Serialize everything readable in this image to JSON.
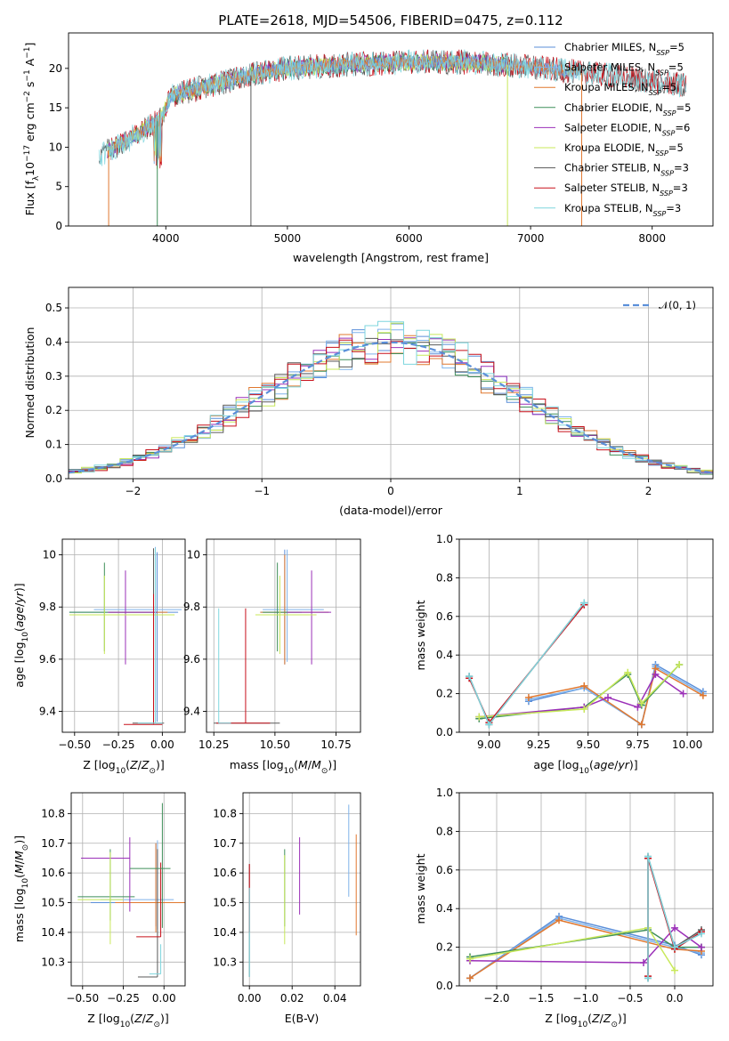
{
  "title": "PLATE=2618, MJD=54506, FIBERID=0475, z=0.112",
  "colors": {
    "Chabrier MILES": "#5b8fd9",
    "Salpeter MILES": "#7fb2ea",
    "Kroupa MILES": "#e0782f",
    "Chabrier ELODIE": "#3f8f5a",
    "Salpeter ELODIE": "#9b30b8",
    "Kroupa ELODIE": "#c8e85a",
    "Chabrier STELIB": "#5a5a5a",
    "Salpeter STELIB": "#c8101a",
    "Kroupa STELIB": "#7ed6de"
  },
  "chart_data": [
    {
      "id": "spectrum",
      "type": "line",
      "title": "PLATE=2618, MJD=54506, FIBERID=0475, z=0.112",
      "xlabel": "wavelength [Angstrom, rest frame]",
      "ylabel": "Flux [f_λ10^-17 erg cm^-2 s^-1 A^-1]",
      "xlim": [
        3200,
        8500
      ],
      "ylim": [
        0,
        24.5
      ],
      "xticks": [
        4000,
        5000,
        6000,
        7000,
        8000
      ],
      "yticks": [
        0,
        5,
        10,
        15,
        20
      ],
      "grid": false,
      "legend": "upper-right",
      "legend_entries": [
        {
          "sed": "Chabrier MILES",
          "ssp": "5"
        },
        {
          "sed": "Salpeter MILES",
          "ssp": "5"
        },
        {
          "sed": "Kroupa MILES",
          "ssp": "5"
        },
        {
          "sed": "Chabrier ELODIE",
          "ssp": "5"
        },
        {
          "sed": "Salpeter ELODIE",
          "ssp": "6"
        },
        {
          "sed": "Kroupa ELODIE",
          "ssp": "5"
        },
        {
          "sed": "Chabrier STELIB",
          "ssp": "3"
        },
        {
          "sed": "Salpeter STELIB",
          "ssp": "3"
        },
        {
          "sed": "Kroupa STELIB",
          "ssp": "3"
        }
      ],
      "continuum_x": [
        3450,
        3700,
        3850,
        3950,
        4050,
        4400,
        4800,
        5000,
        5500,
        6000,
        6500,
        7000,
        7400,
        7800,
        8280
      ],
      "continuum_y": [
        9.0,
        11.0,
        12.5,
        13.5,
        16.5,
        18.0,
        19.5,
        20.0,
        20.5,
        20.8,
        20.8,
        20.2,
        19.5,
        18.8,
        17.8
      ],
      "dropouts_x": [
        3530,
        3930,
        4700,
        6810,
        7420
      ]
    },
    {
      "id": "residuals",
      "type": "step-histogram",
      "xlabel": "(data-model)/error",
      "ylabel": "Normed distribution",
      "xlim": [
        -2.5,
        2.5
      ],
      "ylim": [
        0,
        0.56
      ],
      "xticks": [
        -2,
        -1,
        0,
        1,
        2
      ],
      "yticks": [
        0.0,
        0.1,
        0.2,
        0.3,
        0.4,
        0.5
      ],
      "grid": true,
      "legend": "upper-right",
      "normal_label": "𝒩(0, 1)",
      "bin_width": 0.1
    },
    {
      "id": "age_vs_Z",
      "type": "errorbar",
      "xlabel": "Z [log10(Z/Z⊙)]",
      "ylabel": "age  [log10(age/yr)]",
      "xlim": [
        -0.57,
        0.13
      ],
      "ylim": [
        9.32,
        10.06
      ],
      "xticks": [
        -0.5,
        -0.25,
        0.0
      ],
      "xticklabels": [
        "−0.50",
        "−0.25",
        "0.00"
      ],
      "yticks": [
        9.4,
        9.6,
        9.8,
        10.0
      ],
      "grid": true,
      "points": [
        {
          "sed": "Chabrier MILES",
          "x": -0.03,
          "y": 9.78,
          "xerr": [
            0.5,
            0.12
          ],
          "yerr": [
            0.42,
            0.23
          ]
        },
        {
          "sed": "Salpeter MILES",
          "x": -0.04,
          "y": 9.79,
          "xerr": [
            0.35,
            0.15
          ],
          "yerr": [
            0.43,
            0.24
          ]
        },
        {
          "sed": "Kroupa MILES",
          "x": -0.05,
          "y": 9.78,
          "xerr": [
            0.25,
            0.08
          ],
          "yerr": [
            0.4,
            0.22
          ]
        },
        {
          "sed": "Chabrier ELODIE",
          "x": -0.33,
          "y": 9.78,
          "xerr": [
            0.2,
            0.3
          ],
          "yerr": [
            0.15,
            0.19
          ]
        },
        {
          "sed": "Salpeter ELODIE",
          "x": -0.21,
          "y": 9.78,
          "xerr": [
            0.1,
            0.18
          ],
          "yerr": [
            0.2,
            0.16
          ]
        },
        {
          "sed": "Kroupa ELODIE",
          "x": -0.33,
          "y": 9.77,
          "xerr": [
            0.2,
            0.4
          ],
          "yerr": [
            0.15,
            0.15
          ]
        },
        {
          "sed": "Chabrier STELIB",
          "x": -0.05,
          "y": 9.355,
          "xerr": [
            0.12,
            0.06
          ],
          "yerr": [
            0.0,
            0.67
          ]
        },
        {
          "sed": "Salpeter STELIB",
          "x": -0.05,
          "y": 9.35,
          "xerr": [
            0.17,
            0.05
          ],
          "yerr": [
            0.0,
            0.5
          ]
        },
        {
          "sed": "Kroupa STELIB",
          "x": -0.04,
          "y": 9.355,
          "xerr": [
            0.1,
            0.04
          ],
          "yerr": [
            0.0,
            0.67
          ]
        }
      ]
    },
    {
      "id": "age_vs_mass",
      "type": "errorbar",
      "xlabel": "mass [log10(M/M⊙)]",
      "ylabel": "",
      "xlim": [
        10.22,
        10.85
      ],
      "ylim": [
        9.32,
        10.06
      ],
      "xticks": [
        10.25,
        10.5,
        10.75
      ],
      "xticklabels": [
        "10.25",
        "10.50",
        "10.75"
      ],
      "yticks": [
        9.4,
        9.6,
        9.8,
        10.0
      ],
      "grid": true,
      "points": [
        {
          "sed": "Chabrier MILES",
          "x": 10.54,
          "y": 9.78,
          "xerr": [
            0.1,
            0.18
          ],
          "yerr": [
            0.2,
            0.24
          ]
        },
        {
          "sed": "Salpeter MILES",
          "x": 10.55,
          "y": 9.79,
          "xerr": [
            0.1,
            0.15
          ],
          "yerr": [
            0.2,
            0.23
          ]
        },
        {
          "sed": "Kroupa MILES",
          "x": 10.54,
          "y": 9.78,
          "xerr": [
            0.1,
            0.18
          ],
          "yerr": [
            0.2,
            0.22
          ]
        },
        {
          "sed": "Chabrier ELODIE",
          "x": 10.51,
          "y": 9.78,
          "xerr": [
            0.06,
            0.1
          ],
          "yerr": [
            0.15,
            0.19
          ]
        },
        {
          "sed": "Salpeter ELODIE",
          "x": 10.65,
          "y": 9.78,
          "xerr": [
            0.1,
            0.08
          ],
          "yerr": [
            0.2,
            0.16
          ]
        },
        {
          "sed": "Kroupa ELODIE",
          "x": 10.52,
          "y": 9.77,
          "xerr": [
            0.1,
            0.15
          ],
          "yerr": [
            0.15,
            0.15
          ]
        },
        {
          "sed": "Chabrier STELIB",
          "x": 10.52,
          "y": 9.355,
          "xerr": [
            0.27,
            0.0
          ],
          "yerr": [
            0.0,
            0.0
          ]
        },
        {
          "sed": "Salpeter STELIB",
          "x": 10.38,
          "y": 9.355,
          "xerr": [
            0.12,
            0.1
          ],
          "yerr": [
            0.0,
            0.44
          ]
        },
        {
          "sed": "Kroupa STELIB",
          "x": 10.27,
          "y": 9.355,
          "xerr": [
            0.0,
            0.05
          ],
          "yerr": [
            0.0,
            0.44
          ]
        }
      ]
    },
    {
      "id": "weight_vs_age",
      "type": "line",
      "xlabel": "age  [log10(age/yr)]",
      "ylabel": "mass weight",
      "xlim": [
        8.85,
        10.13
      ],
      "ylim": [
        0.0,
        1.0
      ],
      "xticks": [
        9.0,
        9.25,
        9.5,
        9.75,
        10.0
      ],
      "xticklabels": [
        "9.00",
        "9.25",
        "9.50",
        "9.75",
        "10.00"
      ],
      "yticks": [
        0.0,
        0.2,
        0.4,
        0.6,
        0.8,
        1.0
      ],
      "grid": true,
      "series": [
        {
          "sed": "Chabrier MILES",
          "x": [
            9.2,
            9.48,
            9.77,
            9.84,
            10.08
          ],
          "y": [
            0.16,
            0.23,
            0.04,
            0.35,
            0.21
          ]
        },
        {
          "sed": "Salpeter MILES",
          "x": [
            9.2,
            9.48,
            9.77,
            9.84,
            10.08
          ],
          "y": [
            0.17,
            0.23,
            0.04,
            0.34,
            0.2
          ]
        },
        {
          "sed": "Kroupa MILES",
          "x": [
            9.2,
            9.48,
            9.77,
            9.84,
            10.08
          ],
          "y": [
            0.18,
            0.24,
            0.04,
            0.33,
            0.19
          ]
        },
        {
          "sed": "Chabrier ELODIE",
          "x": [
            8.95,
            9.48,
            9.7,
            9.77,
            9.96
          ],
          "y": [
            0.07,
            0.13,
            0.3,
            0.14,
            0.35
          ]
        },
        {
          "sed": "Salpeter ELODIE",
          "x": [
            8.95,
            9.48,
            9.6,
            9.75,
            9.84,
            9.98
          ],
          "y": [
            0.08,
            0.13,
            0.18,
            0.13,
            0.3,
            0.2
          ]
        },
        {
          "sed": "Kroupa ELODIE",
          "x": [
            8.95,
            9.48,
            9.7,
            9.77,
            9.96
          ],
          "y": [
            0.08,
            0.12,
            0.31,
            0.15,
            0.35
          ]
        },
        {
          "sed": "Chabrier STELIB",
          "x": [
            8.9,
            9.0,
            9.48
          ],
          "y": [
            0.29,
            0.04,
            0.67
          ]
        },
        {
          "sed": "Salpeter STELIB",
          "x": [
            8.9,
            9.0,
            9.48
          ],
          "y": [
            0.28,
            0.05,
            0.66
          ]
        },
        {
          "sed": "Kroupa STELIB",
          "x": [
            8.9,
            9.0,
            9.48
          ],
          "y": [
            0.29,
            0.04,
            0.67
          ]
        }
      ]
    },
    {
      "id": "mass_vs_Z",
      "type": "errorbar",
      "xlabel": "Z [log10(Z/Z⊙)]",
      "ylabel": "mass [log10(M/M⊙)]",
      "xlim": [
        -0.57,
        0.13
      ],
      "ylim": [
        10.22,
        10.87
      ],
      "xticks": [
        -0.5,
        -0.25,
        0.0
      ],
      "xticklabels": [
        "−0.50",
        "−0.25",
        "0.00"
      ],
      "yticks": [
        10.3,
        10.4,
        10.5,
        10.6,
        10.7,
        10.8
      ],
      "grid": true,
      "points": [
        {
          "sed": "Chabrier MILES",
          "x": -0.05,
          "y": 10.5,
          "xerr": [
            0.4,
            0.15
          ],
          "yerr": [
            0.08,
            0.2
          ]
        },
        {
          "sed": "Salpeter MILES",
          "x": -0.04,
          "y": 10.51,
          "xerr": [
            0.35,
            0.1
          ],
          "yerr": [
            0.1,
            0.2
          ]
        },
        {
          "sed": "Kroupa MILES",
          "x": -0.05,
          "y": 10.5,
          "xerr": [
            0.25,
            0.18
          ],
          "yerr": [
            0.1,
            0.2
          ]
        },
        {
          "sed": "Chabrier ELODIE",
          "x": -0.33,
          "y": 10.52,
          "xerr": [
            0.2,
            0.15
          ],
          "yerr": [
            0.08,
            0.16
          ]
        },
        {
          "sed": "Salpeter ELODIE",
          "x": -0.21,
          "y": 10.65,
          "xerr": [
            0.3,
            0.0
          ],
          "yerr": [
            0.18,
            0.07
          ]
        },
        {
          "sed": "Kroupa ELODIE",
          "x": -0.33,
          "y": 10.51,
          "xerr": [
            0.2,
            0.08
          ],
          "yerr": [
            0.15,
            0.16
          ]
        },
        {
          "sed": "Chabrier STELIB",
          "x": -0.04,
          "y": 10.25,
          "xerr": [
            0.12,
            0.0
          ],
          "yerr": [
            0.0,
            0.43
          ]
        },
        {
          "sed": "Salpeter STELIB",
          "x": -0.02,
          "y": 10.385,
          "xerr": [
            0.15,
            0.0
          ],
          "yerr": [
            0.0,
            0.25
          ]
        },
        {
          "sed": "Kroupa STELIB",
          "x": -0.02,
          "y": 10.26,
          "xerr": [
            0.07,
            0.0
          ],
          "yerr": [
            0.0,
            0.1
          ]
        },
        {
          "sed": "Chabrier ELODIE",
          "x": -0.01,
          "y": 10.615,
          "xerr": [
            0.2,
            0.05
          ],
          "yerr": [
            0.2,
            0.22
          ]
        }
      ]
    },
    {
      "id": "mass_vs_ebv",
      "type": "errorbar",
      "xlabel": "E(B-V)",
      "ylabel": "",
      "xlim": [
        -0.003,
        0.052
      ],
      "ylim": [
        10.22,
        10.87
      ],
      "xticks": [
        0.0,
        0.02,
        0.04
      ],
      "xticklabels": [
        "0.00",
        "0.02",
        "0.04"
      ],
      "yticks": [
        10.3,
        10.4,
        10.5,
        10.6,
        10.7,
        10.8
      ],
      "grid": true,
      "points": [
        {
          "sed": "Chabrier STELIB",
          "x": 0.0,
          "y": 10.4,
          "xerr": [
            0,
            0
          ],
          "yerr": [
            0.15,
            0.23
          ]
        },
        {
          "sed": "Salpeter STELIB",
          "x": 0.0,
          "y": 10.5,
          "xerr": [
            0,
            0
          ],
          "yerr": [
            0.1,
            0.13
          ]
        },
        {
          "sed": "Kroupa STELIB",
          "x": 0.0,
          "y": 10.4,
          "xerr": [
            0,
            0
          ],
          "yerr": [
            0.15,
            0.15
          ]
        },
        {
          "sed": "Chabrier ELODIE",
          "x": 0.0165,
          "y": 10.52,
          "xerr": [
            0,
            0
          ],
          "yerr": [
            0.1,
            0.16
          ]
        },
        {
          "sed": "Kroupa ELODIE",
          "x": 0.0165,
          "y": 10.52,
          "xerr": [
            0,
            0
          ],
          "yerr": [
            0.16,
            0.14
          ]
        },
        {
          "sed": "Salpeter ELODIE",
          "x": 0.0235,
          "y": 10.6,
          "xerr": [
            0,
            0
          ],
          "yerr": [
            0.14,
            0.12
          ]
        },
        {
          "sed": "Salpeter MILES",
          "x": 0.0465,
          "y": 10.68,
          "xerr": [
            0,
            0
          ],
          "yerr": [
            0.16,
            0.15
          ]
        },
        {
          "sed": "Kroupa MILES",
          "x": 0.05,
          "y": 10.56,
          "xerr": [
            0,
            0
          ],
          "yerr": [
            0.17,
            0.17
          ]
        }
      ]
    },
    {
      "id": "weight_vs_Z",
      "type": "line",
      "xlabel": "Z [log10(Z/Z⊙)]",
      "ylabel": "mass weight",
      "xlim": [
        -2.42,
        0.43
      ],
      "ylim": [
        0.0,
        1.0
      ],
      "xticks": [
        -2.0,
        -1.5,
        -1.0,
        -0.5,
        0.0
      ],
      "xticklabels": [
        "−2.0",
        "−1.5",
        "−1.0",
        "−0.5",
        "0.0"
      ],
      "yticks": [
        0.0,
        0.2,
        0.4,
        0.6,
        0.8,
        1.0
      ],
      "grid": true,
      "series": [
        {
          "sed": "Chabrier MILES",
          "x": [
            -2.3,
            -1.3,
            0.0,
            0.3
          ],
          "y": [
            0.04,
            0.36,
            0.21,
            0.16
          ]
        },
        {
          "sed": "Salpeter MILES",
          "x": [
            -2.3,
            -1.3,
            0.0,
            0.3
          ],
          "y": [
            0.04,
            0.35,
            0.2,
            0.17
          ]
        },
        {
          "sed": "Kroupa MILES",
          "x": [
            -2.3,
            -1.3,
            0.0,
            0.3
          ],
          "y": [
            0.04,
            0.34,
            0.19,
            0.18
          ]
        },
        {
          "sed": "Chabrier ELODIE",
          "x": [
            -2.3,
            -0.3,
            0.0,
            0.3
          ],
          "y": [
            0.15,
            0.29,
            0.2,
            0.2
          ]
        },
        {
          "sed": "Salpeter ELODIE",
          "x": [
            -2.3,
            -0.35,
            0.0,
            0.3
          ],
          "y": [
            0.13,
            0.12,
            0.3,
            0.2
          ]
        },
        {
          "sed": "Kroupa ELODIE",
          "x": [
            -2.3,
            -0.3,
            0.0
          ],
          "y": [
            0.14,
            0.3,
            0.08
          ]
        },
        {
          "sed": "Chabrier STELIB",
          "x": [
            -0.3,
            -0.3,
            0.0,
            0.3
          ],
          "y": [
            0.04,
            0.67,
            0.2,
            0.29
          ]
        },
        {
          "sed": "Salpeter STELIB",
          "x": [
            -0.3,
            -0.3,
            0.0,
            0.3
          ],
          "y": [
            0.05,
            0.66,
            0.19,
            0.28
          ]
        },
        {
          "sed": "Kroupa STELIB",
          "x": [
            -0.3,
            -0.3,
            0.0,
            0.3
          ],
          "y": [
            0.04,
            0.67,
            0.2,
            0.27
          ]
        }
      ]
    }
  ]
}
